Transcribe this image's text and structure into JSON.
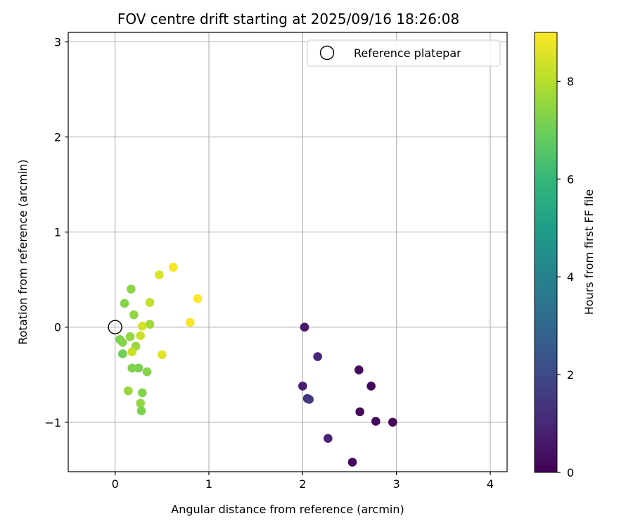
{
  "chart_data": {
    "type": "scatter",
    "title": "FOV centre drift starting at 2025/09/16 18:26:08",
    "xlabel": "Angular distance from reference (arcmin)",
    "ylabel": "Rotation from reference (arcmin)",
    "xlim": [
      -0.5,
      4.18
    ],
    "ylim": [
      -1.52,
      3.1
    ],
    "xticks": [
      0,
      1,
      2,
      3,
      4
    ],
    "yticks": [
      -1,
      0,
      1,
      2,
      3
    ],
    "xtick_labels": [
      "0",
      "1",
      "2",
      "3",
      "4"
    ],
    "ytick_labels": [
      "−1",
      "0",
      "1",
      "2",
      "3"
    ],
    "grid": true,
    "legend": {
      "position": "top-right",
      "label": "Reference platepar"
    },
    "reference_point": {
      "x": 0,
      "y": 0
    },
    "colorbar": {
      "label": "Hours from first FF file",
      "range": [
        0,
        9
      ],
      "ticks": [
        0,
        2,
        4,
        6,
        8
      ],
      "tick_labels": [
        "0",
        "2",
        "4",
        "6",
        "8"
      ],
      "colormap": "viridis",
      "colormap_stops": [
        "#440154",
        "#482878",
        "#3e4989",
        "#31688e",
        "#26828e",
        "#1f9e89",
        "#35b779",
        "#6ece58",
        "#b5de2b",
        "#fde725"
      ]
    },
    "points": [
      {
        "x": 2.02,
        "y": 0.0,
        "hours": 0.6
      },
      {
        "x": 2.16,
        "y": -0.31,
        "hours": 1.0
      },
      {
        "x": 2.6,
        "y": -0.45,
        "hours": 0.2
      },
      {
        "x": 2.73,
        "y": -0.62,
        "hours": 0.2
      },
      {
        "x": 2.0,
        "y": -0.62,
        "hours": 0.8
      },
      {
        "x": 2.05,
        "y": -0.75,
        "hours": 1.3
      },
      {
        "x": 2.07,
        "y": -0.76,
        "hours": 1.5
      },
      {
        "x": 2.61,
        "y": -0.89,
        "hours": 0.2
      },
      {
        "x": 2.78,
        "y": -0.99,
        "hours": 0.2
      },
      {
        "x": 2.96,
        "y": -1.0,
        "hours": 0.2
      },
      {
        "x": 2.27,
        "y": -1.17,
        "hours": 0.9
      },
      {
        "x": 2.53,
        "y": -1.42,
        "hours": 0.2
      },
      {
        "x": 0.62,
        "y": 0.63,
        "hours": 8.9
      },
      {
        "x": 0.47,
        "y": 0.55,
        "hours": 8.5
      },
      {
        "x": 0.17,
        "y": 0.4,
        "hours": 7.4
      },
      {
        "x": 0.1,
        "y": 0.25,
        "hours": 7.3
      },
      {
        "x": 0.37,
        "y": 0.26,
        "hours": 8.2
      },
      {
        "x": 0.88,
        "y": 0.3,
        "hours": 9.0
      },
      {
        "x": 0.2,
        "y": 0.13,
        "hours": 7.5
      },
      {
        "x": 0.8,
        "y": 0.05,
        "hours": 8.9
      },
      {
        "x": 0.37,
        "y": 0.03,
        "hours": 7.7
      },
      {
        "x": 0.29,
        "y": 0.01,
        "hours": 8.4
      },
      {
        "x": 0.05,
        "y": -0.13,
        "hours": 7.2
      },
      {
        "x": 0.08,
        "y": -0.16,
        "hours": 7.3
      },
      {
        "x": 0.16,
        "y": -0.1,
        "hours": 7.5
      },
      {
        "x": 0.27,
        "y": -0.09,
        "hours": 8.3
      },
      {
        "x": 0.22,
        "y": -0.2,
        "hours": 7.6
      },
      {
        "x": 0.08,
        "y": -0.28,
        "hours": 7.0
      },
      {
        "x": 0.18,
        "y": -0.26,
        "hours": 8.3
      },
      {
        "x": 0.5,
        "y": -0.29,
        "hours": 8.6
      },
      {
        "x": 0.18,
        "y": -0.43,
        "hours": 7.2
      },
      {
        "x": 0.25,
        "y": -0.43,
        "hours": 7.2
      },
      {
        "x": 0.34,
        "y": -0.47,
        "hours": 7.3
      },
      {
        "x": 0.14,
        "y": -0.67,
        "hours": 7.6
      },
      {
        "x": 0.29,
        "y": -0.69,
        "hours": 7.3
      },
      {
        "x": 0.27,
        "y": -0.8,
        "hours": 7.5
      },
      {
        "x": 0.28,
        "y": -0.88,
        "hours": 7.2
      }
    ]
  }
}
